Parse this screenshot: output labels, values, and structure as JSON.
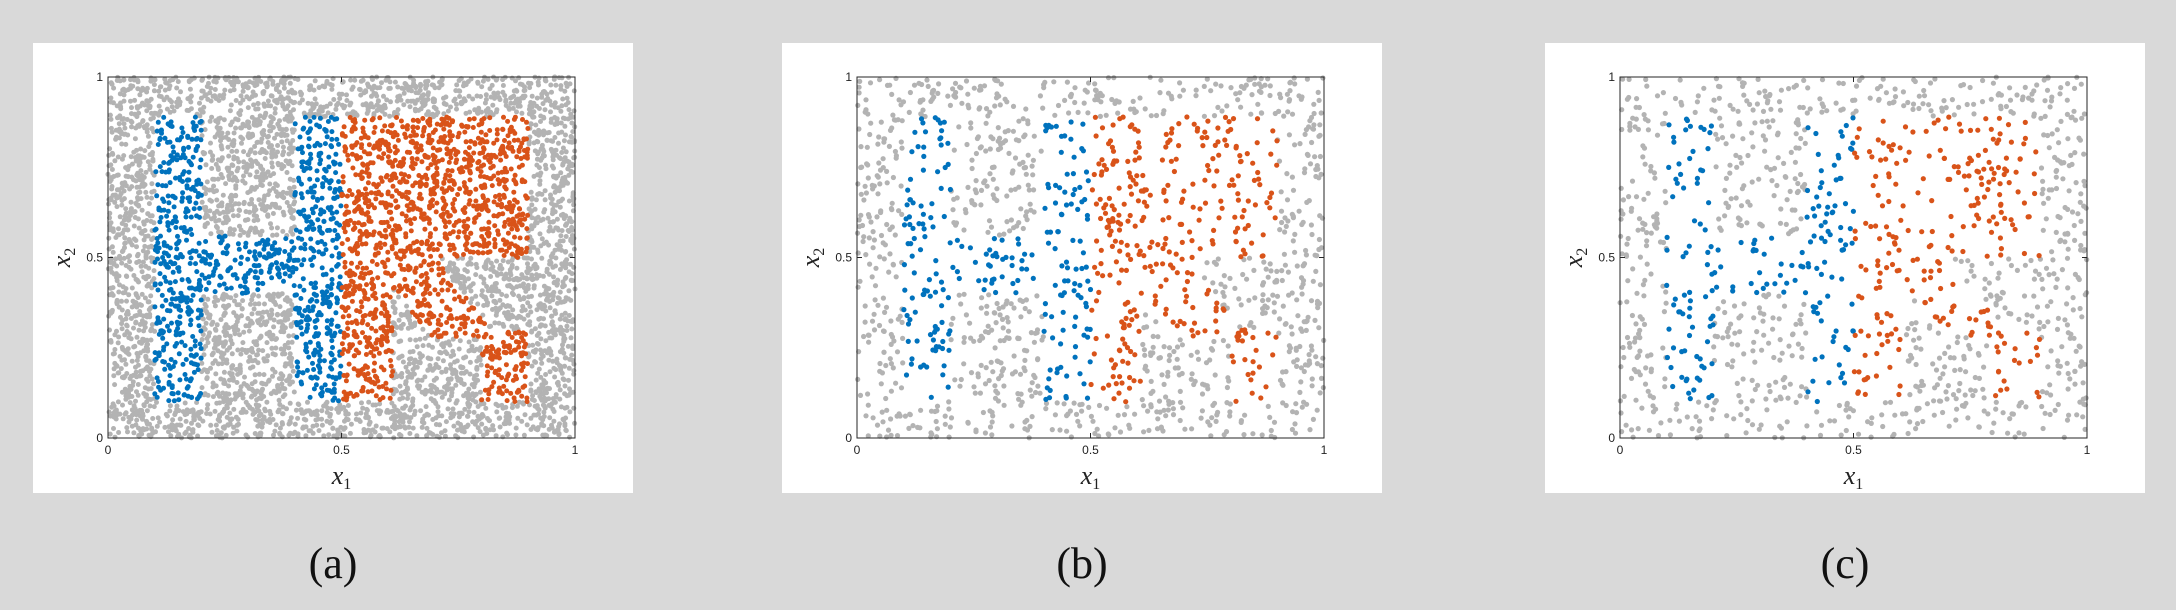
{
  "chart_data": [
    {
      "type": "scatter",
      "panel_label": "(a)",
      "xlabel": "x",
      "xlabel_sub": "1",
      "ylabel": "x",
      "ylabel_sub": "2",
      "xlim": [
        0,
        1
      ],
      "ylim": [
        0,
        1
      ],
      "xticks": [
        "0",
        "0.5",
        "1"
      ],
      "yticks": [
        "0",
        "0.5",
        "1"
      ],
      "grid": false,
      "colors": {
        "background_points": "#b3b3b3",
        "blue": "#0072bd",
        "orange": "#d95319"
      },
      "point_counts": {
        "gray": 3600,
        "blue": 850,
        "orange": 1350
      }
    },
    {
      "type": "scatter",
      "panel_label": "(b)",
      "xlabel": "x",
      "xlabel_sub": "1",
      "ylabel": "x",
      "ylabel_sub": "2",
      "xlim": [
        0,
        1
      ],
      "ylim": [
        0,
        1
      ],
      "xticks": [
        "0",
        "0.5",
        "1"
      ],
      "yticks": [
        "0",
        "0.5",
        "1"
      ],
      "grid": false,
      "colors": {
        "background_points": "#b3b3b3",
        "blue": "#0072bd",
        "orange": "#d95319"
      },
      "point_counts": {
        "gray": 1000,
        "blue": 240,
        "orange": 330
      }
    },
    {
      "type": "scatter",
      "panel_label": "(c)",
      "xlabel": "x",
      "xlabel_sub": "1",
      "ylabel": "x",
      "ylabel_sub": "2",
      "xlim": [
        0,
        1
      ],
      "ylim": [
        0,
        1
      ],
      "xticks": [
        "0",
        "0.5",
        "1"
      ],
      "yticks": [
        "0",
        "0.5",
        "1"
      ],
      "grid": false,
      "colors": {
        "background_points": "#b3b3b3",
        "blue": "#0072bd",
        "orange": "#d95319"
      },
      "point_counts": {
        "gray": 850,
        "blue": 190,
        "orange": 250
      }
    }
  ]
}
